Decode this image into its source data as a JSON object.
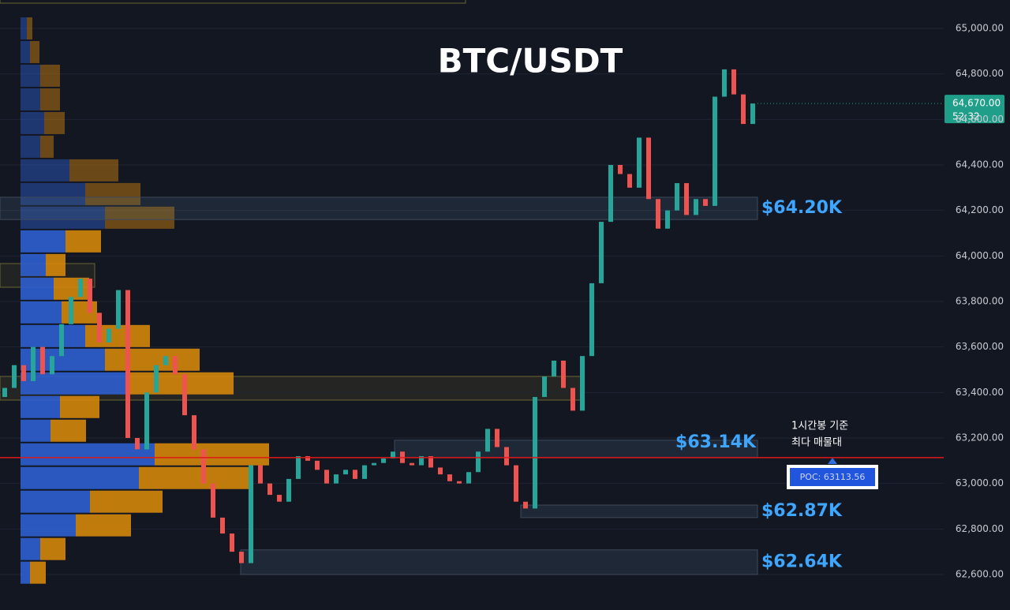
{
  "chart_data": {
    "type": "candlestick",
    "title": "BTC/USDT",
    "ylim": [
      62540,
      65060
    ],
    "yticks": [
      {
        "value": 62600,
        "label": "62,600.00"
      },
      {
        "value": 62800,
        "label": "62,800.00"
      },
      {
        "value": 63000,
        "label": "63,000.00"
      },
      {
        "value": 63200,
        "label": "63,200.00"
      },
      {
        "value": 63400,
        "label": "63,400.00"
      },
      {
        "value": 63600,
        "label": "63,600.00"
      },
      {
        "value": 63800,
        "label": "63,800.00"
      },
      {
        "value": 64000,
        "label": "64,000.00"
      },
      {
        "value": 64200,
        "label": "64,200.00"
      },
      {
        "value": 64400,
        "label": "64,400.00"
      },
      {
        "value": 64600,
        "label": "64,600.00"
      },
      {
        "value": 64800,
        "label": "64,800.00"
      },
      {
        "value": 65000,
        "label": "65,000.00"
      }
    ],
    "grid": true,
    "up_color": "#26a69a",
    "down_color": "#ef5350",
    "open": [
      63380,
      63420,
      63520,
      63450,
      63600,
      63480,
      63560,
      63700,
      63820,
      63900,
      63750,
      63620,
      63680,
      63850,
      63200,
      63150,
      63400,
      63520,
      63560,
      63480,
      63300,
      63150,
      63000,
      62850,
      62780,
      62700,
      62650,
      63080,
      63000,
      62950,
      62920,
      63020,
      63120,
      63100,
      63060,
      63000,
      63040,
      63060,
      63020,
      63080,
      63090,
      63110,
      63140,
      63090,
      63080,
      63120,
      63070,
      63040,
      63010,
      63000,
      63050,
      63140,
      63240,
      63160,
      63080,
      62920,
      62890,
      63380,
      63470,
      63540,
      63420,
      63320,
      63560,
      63880,
      64150,
      64400,
      64360,
      64300,
      64520,
      64250,
      64120,
      64200,
      64320,
      64180,
      64250,
      64220,
      64700,
      64820,
      64710,
      64580
    ],
    "close": [
      63420,
      63520,
      63450,
      63600,
      63480,
      63560,
      63700,
      63820,
      63900,
      63750,
      63620,
      63680,
      63850,
      63200,
      63150,
      63400,
      63520,
      63560,
      63480,
      63300,
      63150,
      63000,
      62850,
      62780,
      62700,
      62650,
      63080,
      63000,
      62950,
      62920,
      63020,
      63120,
      63100,
      63060,
      63000,
      63040,
      63060,
      63020,
      63080,
      63090,
      63110,
      63140,
      63090,
      63080,
      63120,
      63070,
      63040,
      63010,
      63000,
      63050,
      63140,
      63240,
      63160,
      63080,
      62920,
      62890,
      63380,
      63470,
      63540,
      63420,
      63320,
      63560,
      63880,
      64150,
      64400,
      64360,
      64300,
      64520,
      64250,
      64120,
      64200,
      64320,
      64180,
      64250,
      64220,
      64700,
      64820,
      64710,
      64580,
      64670
    ],
    "profile_prices": [
      65000,
      64896,
      64792,
      64688,
      64584,
      64480,
      64376,
      64272,
      64168,
      64064,
      63960,
      63856,
      63752,
      63648,
      63544,
      63440,
      63336,
      63232,
      63128,
      63024,
      62920,
      62816,
      62712,
      62608
    ],
    "profile_buy": [
      8,
      12,
      25,
      25,
      30,
      25,
      62,
      82,
      107,
      57,
      32,
      42,
      52,
      82,
      107,
      135,
      50,
      38,
      170,
      150,
      88,
      70,
      25,
      12
    ],
    "profile_sell": [
      7,
      12,
      25,
      25,
      26,
      17,
      62,
      70,
      88,
      45,
      25,
      45,
      45,
      82,
      120,
      135,
      50,
      45,
      145,
      145,
      92,
      70,
      32,
      20
    ],
    "profile_buy_color": "#2f5fd0",
    "profile_sell_color": "#d4860b",
    "zones": [
      {
        "label": "$64.20K",
        "high": 64258,
        "low": 64160
      },
      {
        "label": "$63.14K",
        "high": 63190,
        "low": 63113
      },
      {
        "label": "$62.87K",
        "high": 62905,
        "low": 62850
      },
      {
        "label": "$62.64K",
        "high": 62708,
        "low": 62600
      }
    ],
    "poc": {
      "value": 63113.56,
      "label": "POC: 63113.56"
    },
    "annotation": [
      "1시간봉 기준",
      "최다 매물대"
    ],
    "last_price": {
      "value": 64670,
      "label": "64,670.00"
    },
    "countdown": "52:32"
  }
}
